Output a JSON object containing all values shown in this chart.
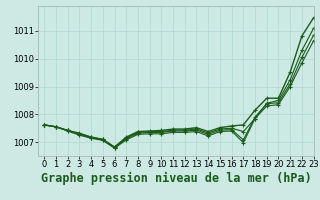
{
  "title": "Graphe pression niveau de la mer (hPa)",
  "bg_color": "#cce9e4",
  "grid_color": "#b0d8d0",
  "line_color": "#1a5c1a",
  "xlim": [
    -0.5,
    23
  ],
  "ylim": [
    1006.5,
    1011.9
  ],
  "yticks": [
    1007,
    1008,
    1009,
    1010,
    1011
  ],
  "xticks": [
    0,
    1,
    2,
    3,
    4,
    5,
    6,
    7,
    8,
    9,
    10,
    11,
    12,
    13,
    14,
    15,
    16,
    17,
    18,
    19,
    20,
    21,
    22,
    23
  ],
  "series": [
    [
      1007.62,
      1007.55,
      1007.42,
      1007.32,
      1007.18,
      1007.1,
      1006.82,
      1007.18,
      1007.38,
      1007.4,
      1007.42,
      1007.47,
      1007.47,
      1007.52,
      1007.38,
      1007.52,
      1007.58,
      1007.62,
      1008.15,
      1008.58,
      1008.58,
      1009.52,
      1010.82,
      1011.48
    ],
    [
      1007.62,
      1007.55,
      1007.42,
      1007.3,
      1007.18,
      1007.1,
      1006.82,
      1007.15,
      1007.35,
      1007.38,
      1007.38,
      1007.43,
      1007.43,
      1007.47,
      1007.33,
      1007.47,
      1007.5,
      1007.38,
      1007.85,
      1008.4,
      1008.5,
      1009.25,
      1010.3,
      1011.1
    ],
    [
      1007.62,
      1007.55,
      1007.42,
      1007.28,
      1007.16,
      1007.08,
      1006.8,
      1007.12,
      1007.32,
      1007.35,
      1007.35,
      1007.4,
      1007.4,
      1007.43,
      1007.28,
      1007.43,
      1007.45,
      1007.08,
      1007.9,
      1008.38,
      1008.42,
      1009.1,
      1010.05,
      1010.85
    ],
    [
      1007.62,
      1007.55,
      1007.4,
      1007.25,
      1007.14,
      1007.06,
      1006.78,
      1007.08,
      1007.28,
      1007.3,
      1007.3,
      1007.35,
      1007.35,
      1007.38,
      1007.22,
      1007.38,
      1007.4,
      1006.98,
      1007.85,
      1008.3,
      1008.35,
      1009.0,
      1009.85,
      1010.65
    ]
  ],
  "title_fontsize": 8.5,
  "tick_fontsize": 6
}
